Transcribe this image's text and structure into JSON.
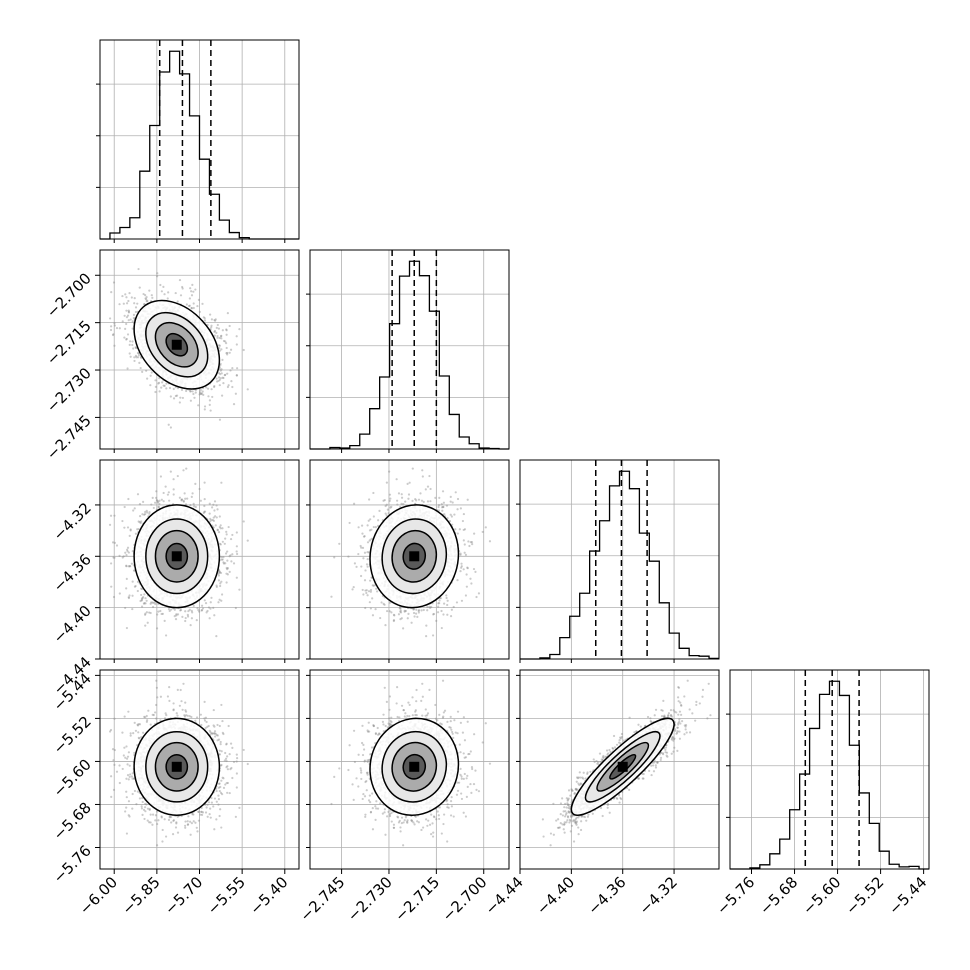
{
  "chart_data": {
    "type": "corner",
    "colors": {
      "axes": "#000000",
      "grid": "#b0b0b0",
      "scatter": "#8c8c8c",
      "background": "#ffffff"
    },
    "grid": true,
    "parameters": [
      {
        "xlim": [
          -6.05,
          -5.35
        ],
        "ticks": [
          -6.0,
          -5.85,
          -5.7,
          -5.55,
          -5.4
        ],
        "tick_labels": [
          "−6.00",
          "−5.85",
          "−5.70",
          "−5.55",
          "−5.40"
        ],
        "quantiles": [
          -5.84,
          -5.76,
          -5.66
        ],
        "peak": -5.78,
        "spread": 0.075
      },
      {
        "xlim": [
          -2.755,
          -2.692
        ],
        "ticks": [
          -2.745,
          -2.73,
          -2.715,
          -2.7
        ],
        "tick_labels": [
          "−2.745",
          "−2.730",
          "−2.715",
          "−2.700"
        ],
        "quantiles": [
          -2.729,
          -2.722,
          -2.715
        ],
        "peak": -2.722,
        "spread": 0.007
      },
      {
        "xlim": [
          -4.44,
          -4.285
        ],
        "ticks": [
          -4.44,
          -4.4,
          -4.36,
          -4.32
        ],
        "tick_labels": [
          "−4.44",
          "−4.40",
          "−4.36",
          "−4.32"
        ],
        "quantiles": [
          -4.381,
          -4.361,
          -4.341
        ],
        "peak": -4.36,
        "spread": 0.02
      },
      {
        "xlim": [
          -5.8,
          -5.43
        ],
        "ticks": [
          -5.76,
          -5.68,
          -5.6,
          -5.52,
          -5.44
        ],
        "tick_labels": [
          "−5.76",
          "−5.68",
          "−5.60",
          "−5.52",
          "−5.44"
        ],
        "quantiles": [
          -5.66,
          -5.61,
          -5.56
        ],
        "peak": -5.61,
        "spread": 0.045
      }
    ],
    "pair_correlations": [
      {
        "i": 1,
        "j": 0,
        "rho": -0.35
      },
      {
        "i": 2,
        "j": 0,
        "rho": 0.0
      },
      {
        "i": 2,
        "j": 1,
        "rho": 0.05
      },
      {
        "i": 3,
        "j": 0,
        "rho": 0.0
      },
      {
        "i": 3,
        "j": 1,
        "rho": 0.05
      },
      {
        "i": 3,
        "j": 2,
        "rho": 0.88
      }
    ],
    "n_samples": 2200
  }
}
